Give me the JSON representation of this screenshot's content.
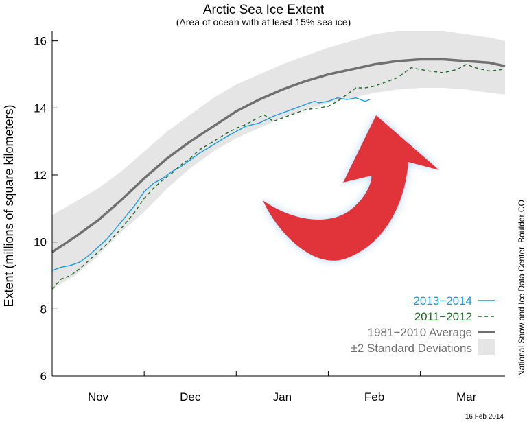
{
  "colors": {
    "s2013": "#1a9be6",
    "s2011": "#1f6b2a",
    "avg": "#707070",
    "band": "#e5e5e5",
    "arrow": "#e0333a",
    "arrow_glow": "#9cc9f5"
  },
  "chart_data": {
    "type": "line",
    "title": "Arctic Sea Ice Extent",
    "subtitle": "(Area of ocean with at least 15% sea ice)",
    "ylabel": "Extent (millions of square kilometers)",
    "xlabel": "",
    "ylim": [
      6,
      16.3
    ],
    "xlim": [
      0,
      4.92
    ],
    "yticks": [
      6,
      8,
      10,
      12,
      14,
      16
    ],
    "ytick_labels": [
      "6",
      "8",
      "10",
      "12",
      "14",
      "16"
    ],
    "xtick_labels": [
      "Nov",
      "Dec",
      "Jan",
      "Feb",
      "Mar"
    ],
    "xtick_positions": [
      0.5,
      1.5,
      2.5,
      3.5,
      4.5
    ],
    "grid": false,
    "legend_position": "bottom-right",
    "band": {
      "name": "±2 Standard Deviations",
      "x": [
        0,
        0.25,
        0.5,
        0.75,
        1.0,
        1.25,
        1.5,
        1.75,
        2.0,
        2.25,
        2.5,
        2.75,
        3.0,
        3.25,
        3.5,
        3.75,
        4.0,
        4.25,
        4.5,
        4.75,
        4.92
      ],
      "upper": [
        10.8,
        11.2,
        11.6,
        12.1,
        12.7,
        13.3,
        13.8,
        14.3,
        14.7,
        15.0,
        15.3,
        15.55,
        15.8,
        16.0,
        16.2,
        16.3,
        16.3,
        16.3,
        16.2,
        16.1,
        16.0
      ],
      "lower": [
        8.6,
        9.0,
        9.6,
        10.3,
        10.9,
        11.6,
        12.2,
        12.7,
        13.1,
        13.4,
        13.7,
        13.95,
        14.15,
        14.3,
        14.45,
        14.55,
        14.6,
        14.6,
        14.55,
        14.45,
        14.4
      ]
    },
    "series": [
      {
        "name": "1981−2010 Average",
        "x": [
          0,
          0.25,
          0.5,
          0.75,
          1.0,
          1.25,
          1.5,
          1.75,
          2.0,
          2.25,
          2.5,
          2.75,
          3.0,
          3.25,
          3.5,
          3.75,
          4.0,
          4.25,
          4.5,
          4.75,
          4.92
        ],
        "values": [
          9.7,
          10.15,
          10.65,
          11.25,
          11.9,
          12.5,
          13.0,
          13.45,
          13.9,
          14.25,
          14.55,
          14.8,
          15.0,
          15.15,
          15.3,
          15.4,
          15.45,
          15.45,
          15.4,
          15.35,
          15.25
        ]
      },
      {
        "name": "2013−2014",
        "x": [
          0,
          0.1,
          0.2,
          0.3,
          0.4,
          0.5,
          0.6,
          0.75,
          0.9,
          1.0,
          1.1,
          1.2,
          1.3,
          1.4,
          1.5,
          1.6,
          1.75,
          1.9,
          2.0,
          2.1,
          2.25,
          2.4,
          2.5,
          2.6,
          2.75,
          2.85,
          2.9,
          3.0,
          3.1,
          3.2,
          3.3,
          3.4,
          3.45
        ],
        "values": [
          9.15,
          9.25,
          9.3,
          9.4,
          9.6,
          9.85,
          10.1,
          10.6,
          11.1,
          11.5,
          11.75,
          11.9,
          12.1,
          12.25,
          12.45,
          12.65,
          12.9,
          13.15,
          13.3,
          13.45,
          13.55,
          13.75,
          13.85,
          13.95,
          14.1,
          14.2,
          14.15,
          14.2,
          14.3,
          14.25,
          14.3,
          14.2,
          14.25
        ]
      },
      {
        "name": "2011−2012",
        "x": [
          0,
          0.1,
          0.2,
          0.3,
          0.4,
          0.5,
          0.6,
          0.75,
          0.9,
          1.0,
          1.1,
          1.2,
          1.3,
          1.4,
          1.5,
          1.6,
          1.75,
          1.9,
          2.0,
          2.1,
          2.2,
          2.3,
          2.4,
          2.5,
          2.6,
          2.75,
          2.9,
          3.0,
          3.1,
          3.2,
          3.3,
          3.4,
          3.5,
          3.6,
          3.75,
          3.9,
          4.0,
          4.1,
          4.25,
          4.4,
          4.5,
          4.6,
          4.75,
          4.9
        ],
        "values": [
          8.6,
          8.9,
          9.0,
          9.2,
          9.45,
          9.7,
          9.95,
          10.4,
          10.9,
          11.3,
          11.6,
          11.85,
          12.05,
          12.3,
          12.5,
          12.75,
          13.0,
          13.25,
          13.4,
          13.5,
          13.65,
          13.8,
          13.6,
          13.7,
          13.8,
          13.95,
          14.0,
          14.05,
          14.2,
          14.4,
          14.6,
          14.6,
          14.65,
          14.75,
          14.9,
          15.2,
          15.15,
          15.1,
          15.05,
          15.15,
          15.3,
          15.2,
          15.1,
          15.15
        ]
      }
    ],
    "annotations": {
      "credit": "National Snow and Ice Data Center, Boulder CO",
      "date": "16 Feb 2014"
    }
  }
}
